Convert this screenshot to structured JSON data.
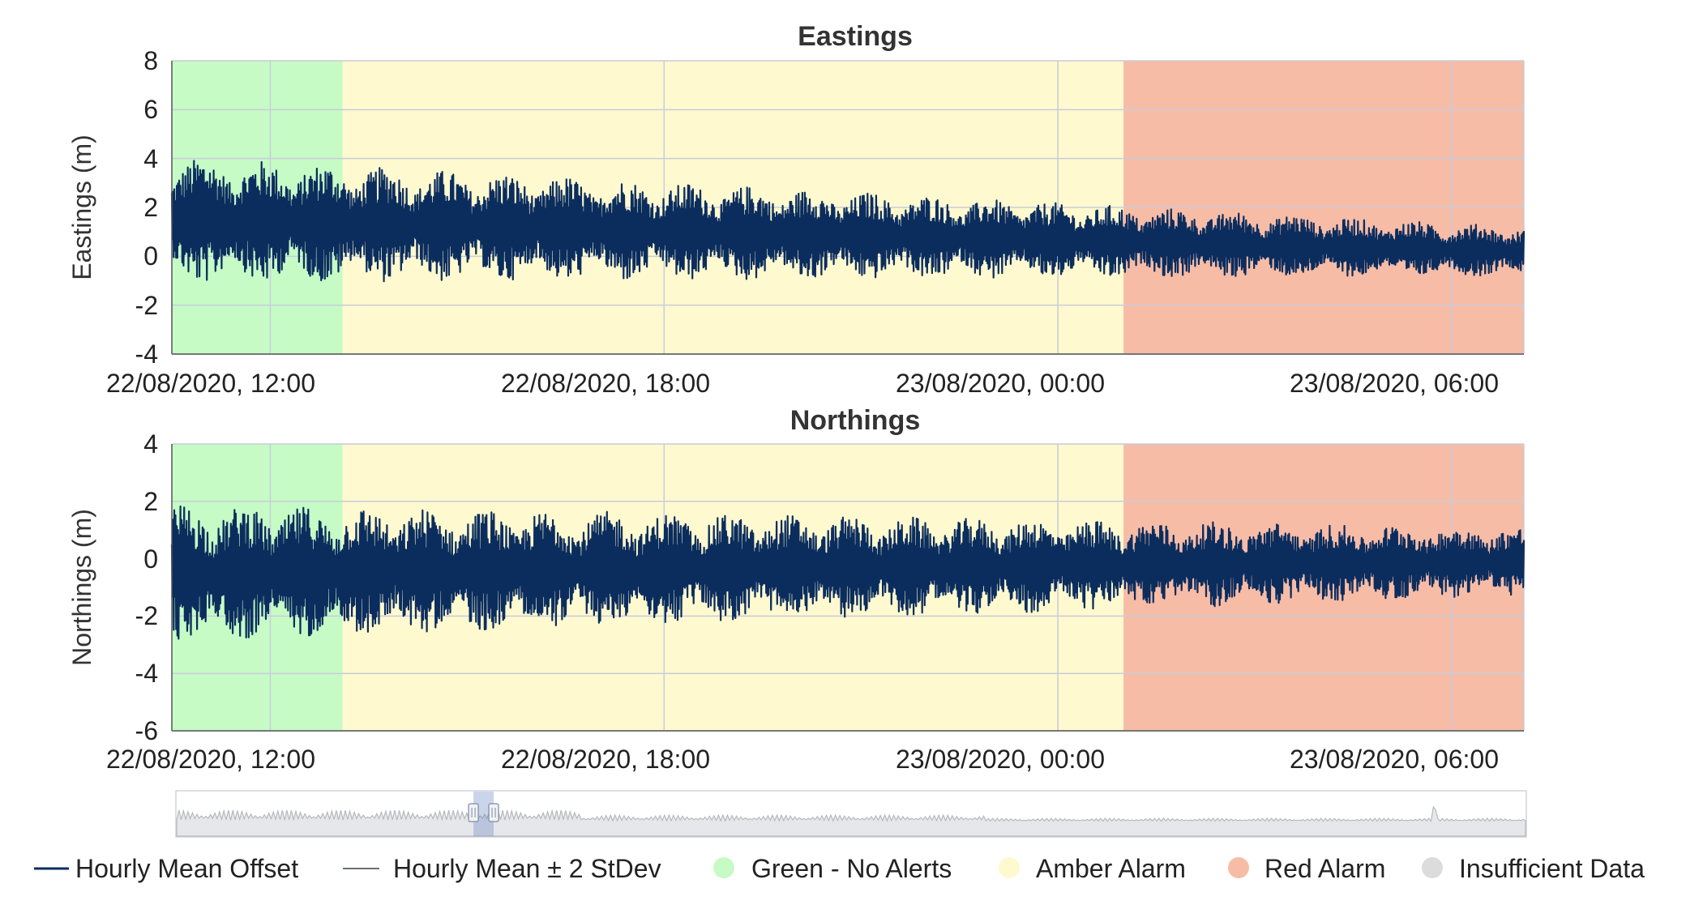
{
  "colors": {
    "series": "#0b2d5e",
    "green": "#c6fbc6",
    "amber": "#fff9cf",
    "red": "#f7bca6",
    "insufficient": "#dcdcdc",
    "grid": "#c9ccd9"
  },
  "chart_data": [
    {
      "type": "line",
      "title": "Eastings",
      "ylabel": "Eastings (m)",
      "ylim": [
        -4,
        8
      ],
      "yticks": [
        "8",
        "6",
        "4",
        "2",
        "0",
        "-2",
        "-4"
      ],
      "xlim_hours": [
        10.5,
        31.1
      ],
      "xticks": [
        {
          "label": "22/08/2020, 12:00",
          "hour": 12
        },
        {
          "label": "22/08/2020, 18:00",
          "hour": 18
        },
        {
          "label": "23/08/2020, 00:00",
          "hour": 24
        },
        {
          "label": "23/08/2020, 06:00",
          "hour": 30
        }
      ],
      "bands": [
        {
          "status": "green",
          "from_hour": 10.5,
          "to_hour": 13.1
        },
        {
          "status": "amber",
          "from_hour": 13.1,
          "to_hour": 25.0
        },
        {
          "status": "red",
          "from_hour": 25.0,
          "to_hour": 31.1
        }
      ],
      "series": [
        {
          "name": "Hourly Mean Offset",
          "mean_start": 1.5,
          "mean_end": 0.2,
          "amplitude_start": 2.6,
          "amplitude_end": 1.0
        }
      ]
    },
    {
      "type": "line",
      "title": "Northings",
      "ylabel": "Northings (m)",
      "ylim": [
        -6,
        4
      ],
      "yticks": [
        "4",
        "2",
        "0",
        "-2",
        "-4",
        "-6"
      ],
      "xlim_hours": [
        10.5,
        31.1
      ],
      "xticks": [
        {
          "label": "22/08/2020, 12:00",
          "hour": 12
        },
        {
          "label": "22/08/2020, 18:00",
          "hour": 18
        },
        {
          "label": "23/08/2020, 00:00",
          "hour": 24
        },
        {
          "label": "23/08/2020, 06:00",
          "hour": 30
        }
      ],
      "bands": [
        {
          "status": "green",
          "from_hour": 10.5,
          "to_hour": 13.1
        },
        {
          "status": "amber",
          "from_hour": 13.1,
          "to_hour": 25.0
        },
        {
          "status": "red",
          "from_hour": 25.0,
          "to_hour": 31.1
        }
      ],
      "series": [
        {
          "name": "Hourly Mean Offset",
          "mean_start": -0.5,
          "mean_end": -0.1,
          "amplitude_start": 2.4,
          "amplitude_end": 1.2
        }
      ]
    }
  ],
  "navigator": {
    "window_start_fraction": 0.22,
    "window_end_fraction": 0.235
  },
  "legend": [
    {
      "label": "Hourly Mean Offset",
      "type": "line-thick"
    },
    {
      "label": "Hourly Mean ± 2 StDev",
      "type": "line-thin"
    },
    {
      "label": "Green - No Alerts",
      "type": "dot",
      "color_key": "green"
    },
    {
      "label": "Amber Alarm",
      "type": "dot",
      "color_key": "amber"
    },
    {
      "label": "Red Alarm",
      "type": "dot",
      "color_key": "red"
    },
    {
      "label": "Insufficient Data",
      "type": "dot",
      "color_key": "insufficient"
    }
  ]
}
